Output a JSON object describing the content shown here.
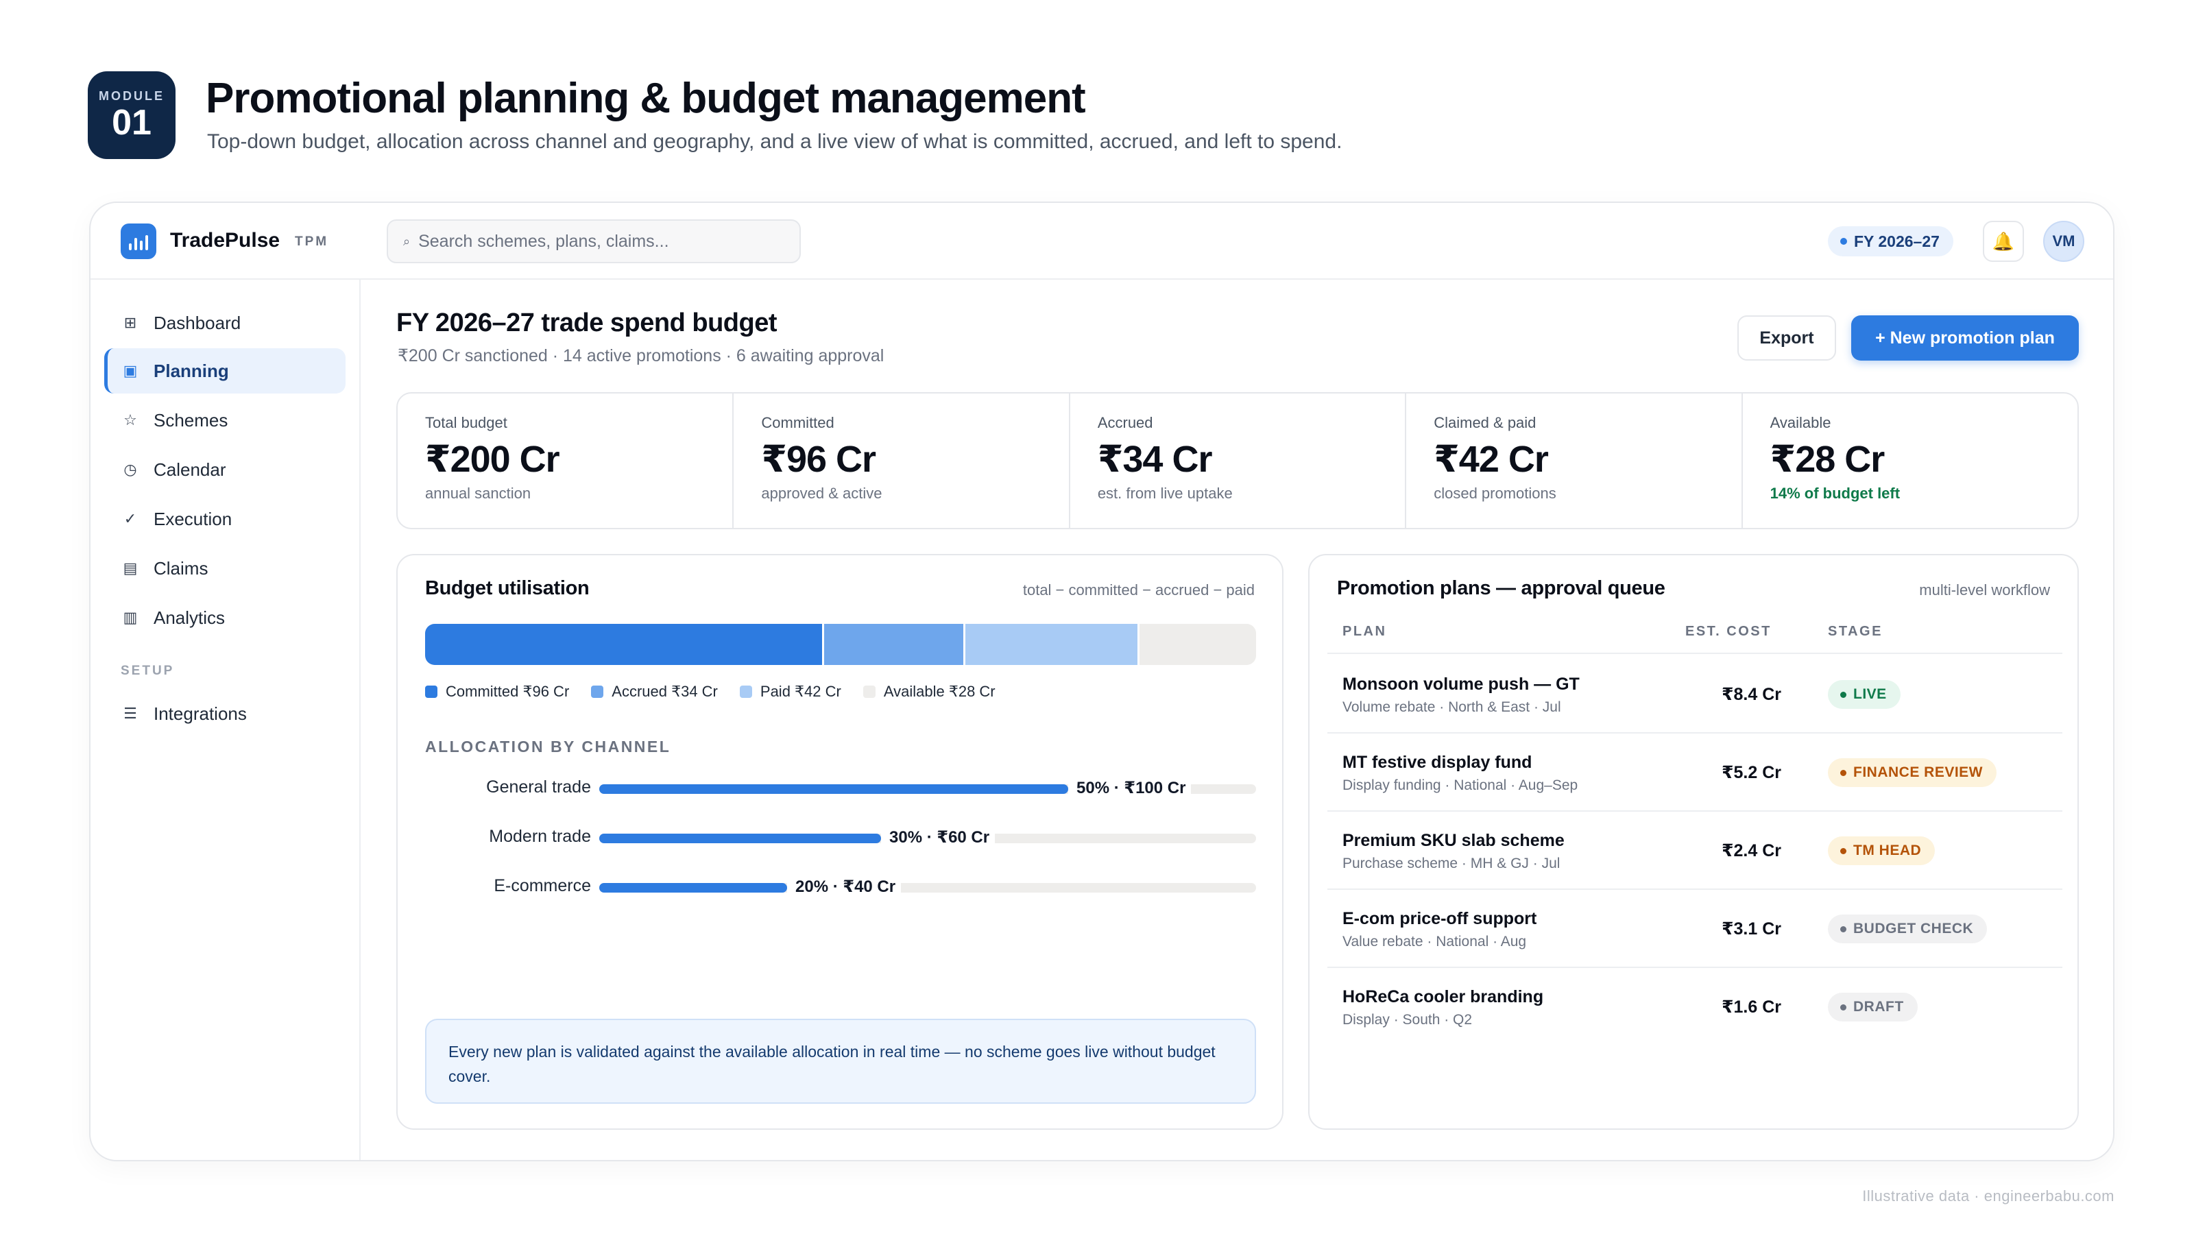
{
  "module": {
    "label": "MODULE",
    "number": "01"
  },
  "page": {
    "title": "Promotional planning & budget management",
    "subtitle": "Top-down budget, allocation across channel and geography, and a live view of what is committed, accrued, and left to spend."
  },
  "app": {
    "brand": "TradePulse",
    "brand_tag": "TPM",
    "search_placeholder": "Search schemes, plans, claims...",
    "fiscal_year": "FY 2026–27",
    "avatar_initials": "VM"
  },
  "sidebar": {
    "items": [
      {
        "label": "Dashboard",
        "icon": "grid-icon"
      },
      {
        "label": "Planning",
        "icon": "calendar-icon",
        "active": true
      },
      {
        "label": "Schemes",
        "icon": "star-icon"
      },
      {
        "label": "Calendar",
        "icon": "clock-icon"
      },
      {
        "label": "Execution",
        "icon": "check-icon"
      },
      {
        "label": "Claims",
        "icon": "document-icon"
      },
      {
        "label": "Analytics",
        "icon": "bar-chart-icon"
      }
    ],
    "setup_label": "SETUP",
    "setup_items": [
      {
        "label": "Integrations",
        "icon": "list-icon"
      }
    ]
  },
  "main": {
    "title": "FY 2026–27 trade spend budget",
    "subtitle": "₹200 Cr sanctioned · 14 active promotions · 6 awaiting approval",
    "export_label": "Export",
    "new_plan_label": "+ New promotion plan"
  },
  "kpis": [
    {
      "label": "Total budget",
      "value": "₹200 Cr",
      "note": "annual sanction"
    },
    {
      "label": "Committed",
      "value": "₹96 Cr",
      "note": "approved & active"
    },
    {
      "label": "Accrued",
      "value": "₹34 Cr",
      "note": "est. from live uptake"
    },
    {
      "label": "Claimed & paid",
      "value": "₹42 Cr",
      "note": "closed promotions"
    },
    {
      "label": "Available",
      "value": "₹28 Cr",
      "note": "14% of budget left"
    }
  ],
  "utilisation": {
    "title": "Budget utilisation",
    "hint": "total − committed − accrued − paid",
    "legend": [
      {
        "label": "Committed ₹96 Cr",
        "color": "#2d7be0"
      },
      {
        "label": "Accrued ₹34 Cr",
        "color": "#6ea6ec"
      },
      {
        "label": "Paid ₹42 Cr",
        "color": "#a8cbf5"
      },
      {
        "label": "Available ₹28 Cr",
        "color": "#eeedeb"
      }
    ],
    "segments": [
      {
        "name": "Committed",
        "value": 96,
        "color": "#2d7be0"
      },
      {
        "name": "Accrued",
        "value": 34,
        "color": "#6ea6ec"
      },
      {
        "name": "Paid",
        "value": 42,
        "color": "#a8cbf5"
      },
      {
        "name": "Available",
        "value": 28,
        "color": "#eeedeb"
      }
    ],
    "total": 200,
    "allocation_heading": "ALLOCATION BY CHANNEL",
    "allocation": [
      {
        "channel": "General trade",
        "percent": 50,
        "label": "50% · ₹100 Cr"
      },
      {
        "channel": "Modern trade",
        "percent": 30,
        "label": "30% · ₹60 Cr"
      },
      {
        "channel": "E-commerce",
        "percent": 20,
        "label": "20% · ₹40 Cr"
      }
    ],
    "note": "Every new plan is validated against the available allocation in real time — no scheme goes live without budget cover."
  },
  "queue": {
    "title": "Promotion plans — approval queue",
    "hint": "multi-level workflow",
    "columns": {
      "plan": "PLAN",
      "cost": "EST. COST",
      "stage": "STAGE"
    },
    "rows": [
      {
        "name": "Monsoon volume push — GT",
        "meta": "Volume rebate · North & East · Jul",
        "cost": "₹8.4 Cr",
        "stage": "LIVE",
        "stage_color": "#0f7a4a",
        "stage_bg": "#e6f6ee"
      },
      {
        "name": "MT festive display fund",
        "meta": "Display funding · National · Aug–Sep",
        "cost": "₹5.2 Cr",
        "stage": "FINANCE REVIEW",
        "stage_color": "#b45309",
        "stage_bg": "#fdf3dc"
      },
      {
        "name": "Premium SKU slab scheme",
        "meta": "Purchase scheme · MH & GJ · Jul",
        "cost": "₹2.4 Cr",
        "stage": "TM HEAD",
        "stage_color": "#b45309",
        "stage_bg": "#fdf3dc"
      },
      {
        "name": "E-com price-off support",
        "meta": "Value rebate · National · Aug",
        "cost": "₹3.1 Cr",
        "stage": "BUDGET CHECK",
        "stage_color": "#6b7280",
        "stage_bg": "#f1f1f2"
      },
      {
        "name": "HoReCa cooler branding",
        "meta": "Display · South · Q2",
        "cost": "₹1.6 Cr",
        "stage": "DRAFT",
        "stage_color": "#6b7280",
        "stage_bg": "#f1f1f2"
      }
    ]
  },
  "footer": "Illustrative data · engineerbabu.com"
}
